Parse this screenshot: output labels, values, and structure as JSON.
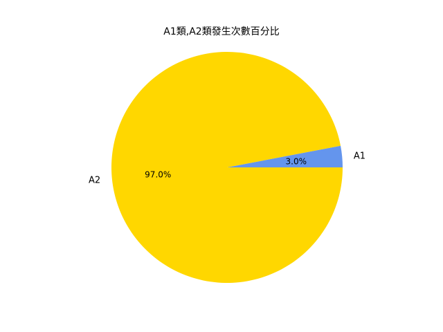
{
  "chart_data": {
    "type": "pie",
    "title": "A1類,A2類發生次數百分比",
    "labels": [
      "A1",
      "A2"
    ],
    "values": [
      3.0,
      97.0
    ],
    "value_labels": [
      "3.0%",
      "97.0%"
    ],
    "colors": [
      "#6495ED",
      "#FFD700"
    ],
    "start_angle_deg": 0,
    "direction": "counterclockwise",
    "legend": "none"
  }
}
